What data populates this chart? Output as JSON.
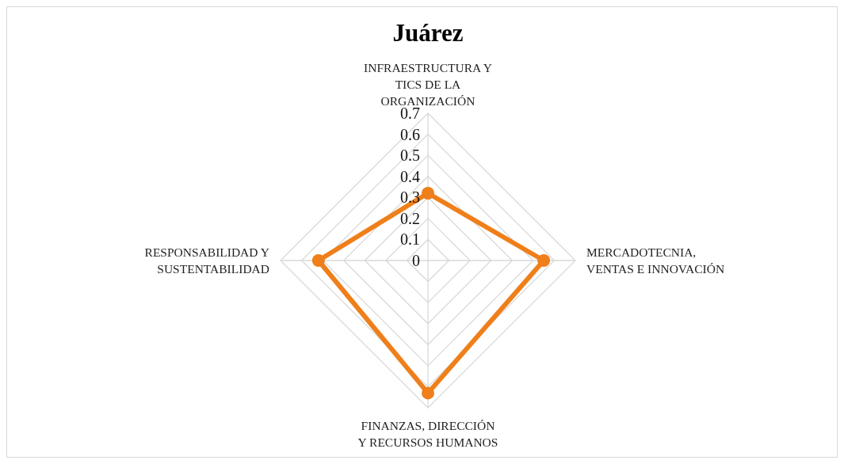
{
  "chart_data": {
    "type": "radar",
    "title": "Juárez",
    "categories": [
      "INFRAESTRUCTURA Y\nTICS DE LA\nORGANIZACIÓN",
      "MERCADOTECNIA,\nVENTAS E INNOVACIÓN",
      "FINANZAS, DIRECCIÓN\nY RECURSOS HUMANOS",
      "RESPONSABILIDAD Y\nSUSTENTABILIDAD"
    ],
    "series": [
      {
        "color": "#ef7f1a",
        "values": [
          0.32,
          0.55,
          0.63,
          0.52
        ]
      }
    ],
    "ylim": [
      0,
      0.7
    ],
    "yticks": [
      0,
      0.1,
      0.2,
      0.3,
      0.4,
      0.5,
      0.6,
      0.7
    ],
    "grid": true,
    "marker": "circle",
    "line_style": "solid"
  }
}
